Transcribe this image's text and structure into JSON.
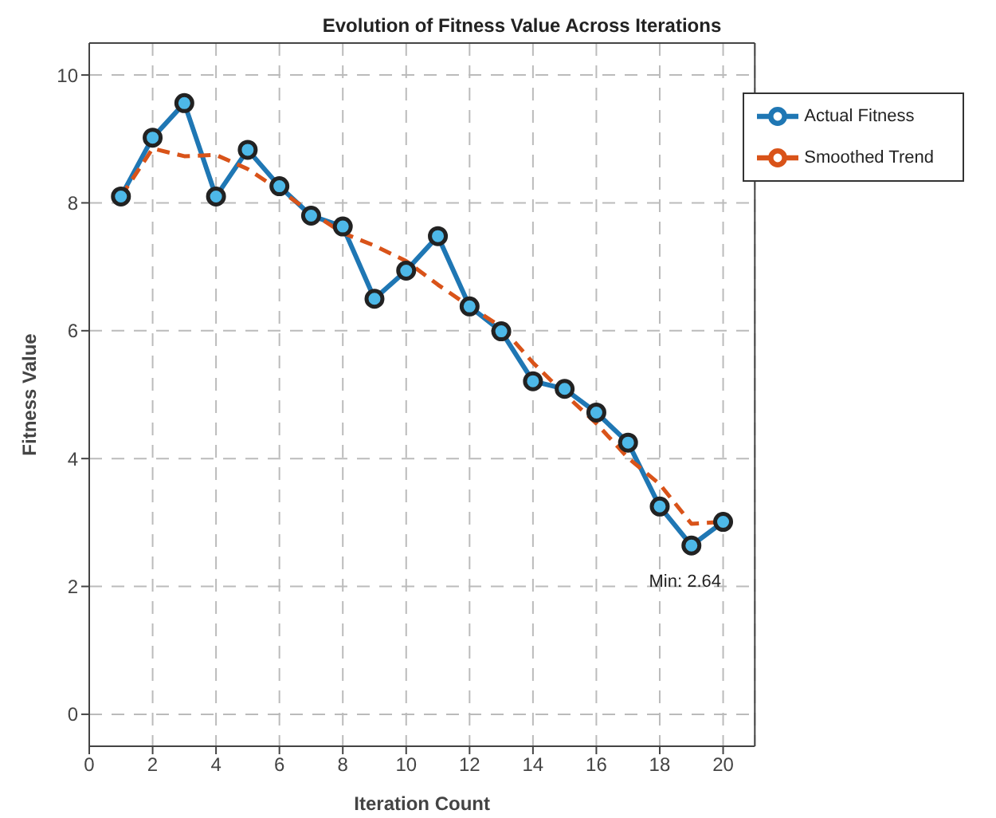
{
  "chart_data": {
    "type": "line",
    "title": "Evolution of Fitness Value Across Iterations",
    "xlabel": "Iteration Count",
    "ylabel": "Fitness Value",
    "x": [
      1,
      2,
      3,
      4,
      5,
      6,
      7,
      8,
      9,
      10,
      11,
      12,
      13,
      14,
      15,
      16,
      17,
      18,
      19,
      20
    ],
    "series": [
      {
        "name": "Actual Fitness",
        "color": "#1f77b4",
        "marker": "circle",
        "line_style": "solid",
        "values": [
          8.1,
          9.02,
          9.56,
          8.1,
          8.83,
          8.26,
          7.8,
          7.63,
          6.5,
          6.94,
          7.48,
          6.38,
          5.99,
          5.21,
          5.09,
          4.72,
          4.25,
          3.25,
          2.64,
          3.01
        ]
      },
      {
        "name": "Smoothed Trend",
        "color": "#d95319",
        "marker": "none",
        "line_style": "dashed",
        "values": [
          8.1,
          8.85,
          8.73,
          8.75,
          8.53,
          8.2,
          7.85,
          7.53,
          7.33,
          7.09,
          6.72,
          6.38,
          6.06,
          5.5,
          5.01,
          4.55,
          4.01,
          3.6,
          2.98,
          3.01
        ]
      }
    ],
    "xlim": [
      0,
      21
    ],
    "xticks": [
      0,
      2,
      4,
      6,
      8,
      10,
      12,
      14,
      16,
      18,
      20
    ],
    "ylim": [
      -0.5,
      10.5
    ],
    "yticks": [
      0,
      2,
      4,
      6,
      8,
      10
    ],
    "grid": true,
    "legend": "top right",
    "annotations": [
      {
        "text": "Min: 2.64",
        "x": 19,
        "y": 2.64
      }
    ]
  }
}
